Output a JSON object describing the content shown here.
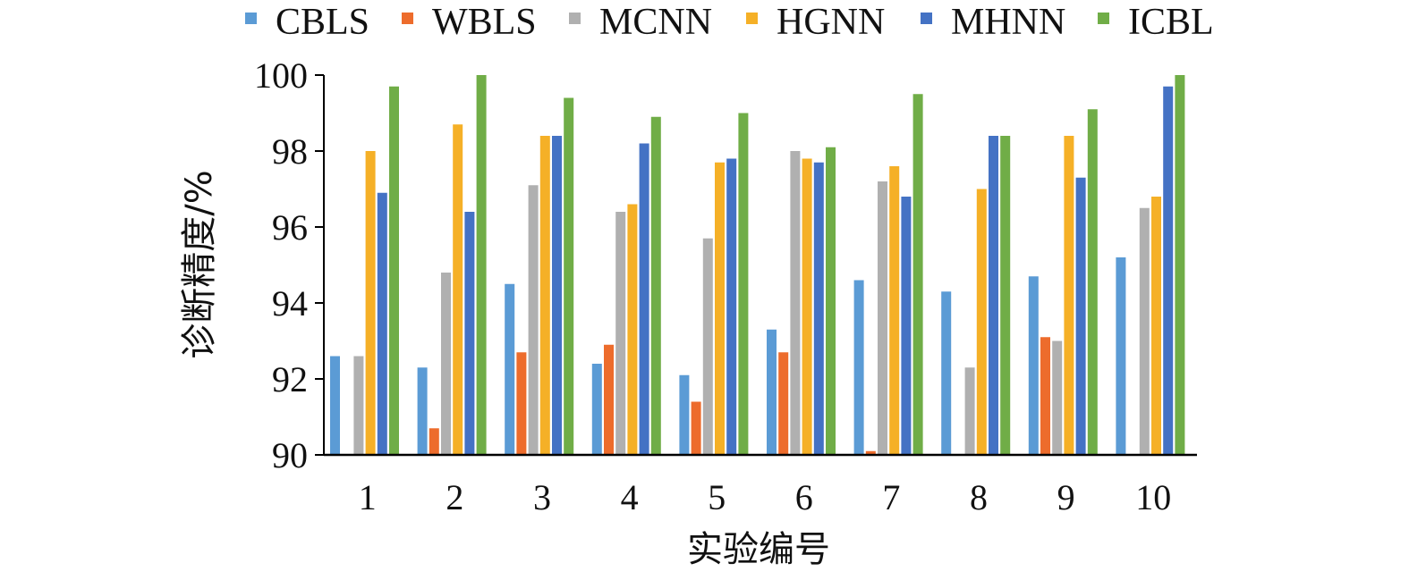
{
  "chart_data": {
    "type": "bar",
    "title": "",
    "xlabel": "实验编号",
    "ylabel": "诊断精度/%",
    "ylim": [
      90,
      100
    ],
    "yticks": [
      "90",
      "92",
      "94",
      "96",
      "98",
      "100"
    ],
    "categories": [
      "1",
      "2",
      "3",
      "4",
      "5",
      "6",
      "7",
      "8",
      "9",
      "10"
    ],
    "legend_position": "top",
    "grid": false,
    "series": [
      {
        "name": "CBLS",
        "color": "#5b9bd5",
        "values": [
          92.6,
          92.3,
          94.5,
          92.4,
          92.1,
          93.3,
          94.6,
          94.3,
          94.7,
          95.2
        ]
      },
      {
        "name": "WBLS",
        "color": "#ed6c2c",
        "values": [
          90.0,
          90.7,
          92.7,
          92.9,
          91.4,
          92.7,
          90.1,
          90.0,
          93.1,
          90.0
        ]
      },
      {
        "name": "MCNN",
        "color": "#b0b0b0",
        "values": [
          92.6,
          94.8,
          97.1,
          96.4,
          95.7,
          98.0,
          97.2,
          92.3,
          93.0,
          96.5
        ]
      },
      {
        "name": "HGNN",
        "color": "#f5b027",
        "values": [
          98.0,
          98.7,
          98.4,
          96.6,
          97.7,
          97.8,
          97.6,
          97.0,
          98.4,
          96.8
        ]
      },
      {
        "name": "MHNN",
        "color": "#4472c4",
        "values": [
          96.9,
          96.4,
          98.4,
          98.2,
          97.8,
          97.7,
          96.8,
          98.4,
          97.3,
          99.7
        ]
      },
      {
        "name": "ICBL",
        "color": "#70ad47",
        "values": [
          99.7,
          100.0,
          99.4,
          98.9,
          99.0,
          98.1,
          99.5,
          98.4,
          99.1,
          100.0
        ]
      }
    ]
  }
}
